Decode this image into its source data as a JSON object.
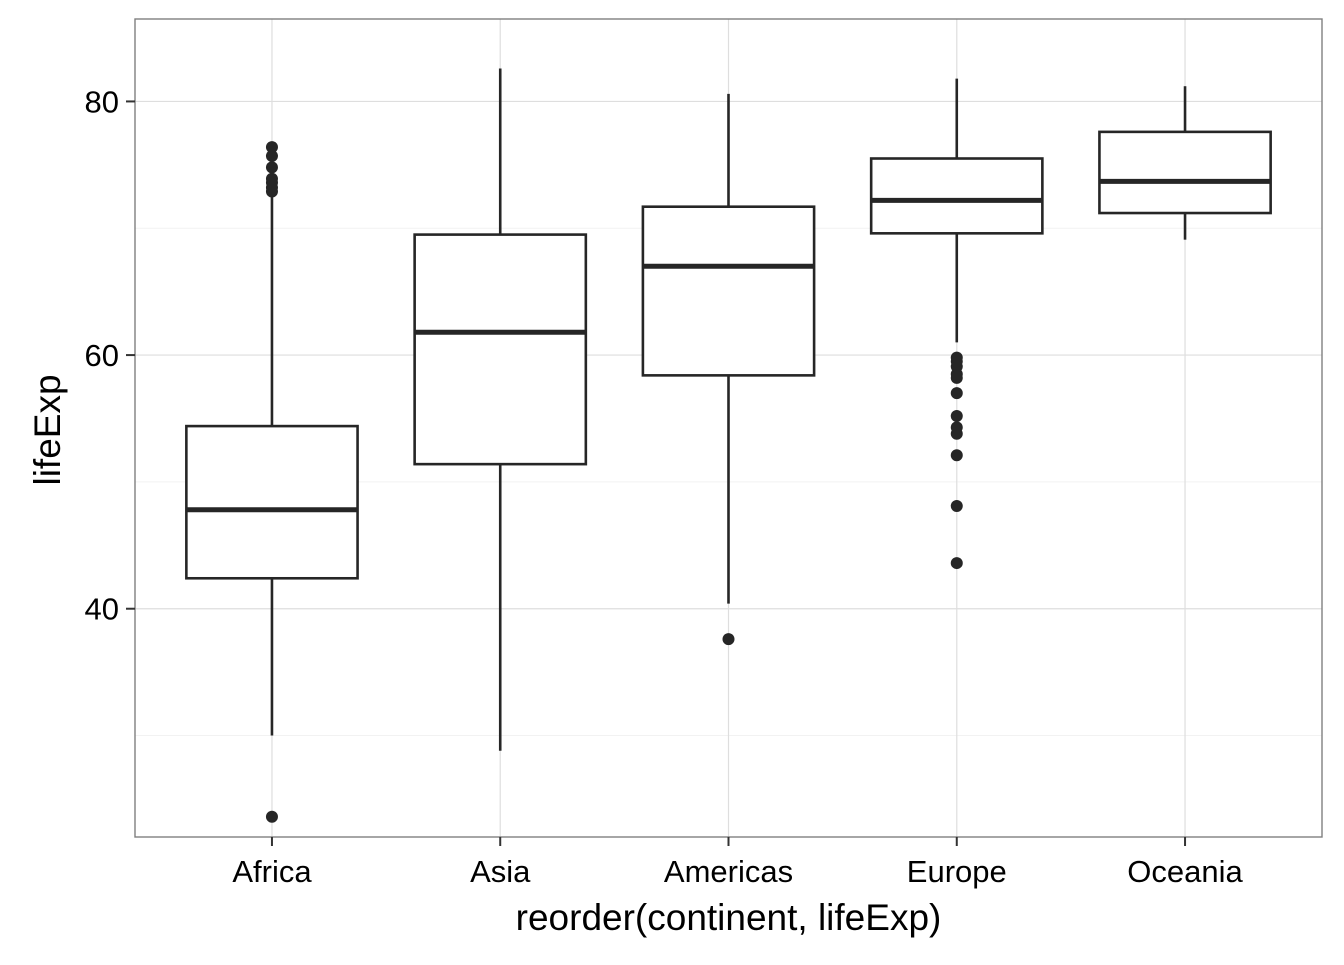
{
  "chart_data": {
    "type": "boxplot",
    "title": "",
    "xlabel": "reorder(continent, lifeExp)",
    "ylabel": "lifeExp",
    "ylim": [
      22.0,
      86.5
    ],
    "yticks": [
      40,
      60,
      80
    ],
    "grid": true,
    "categories": [
      "Africa",
      "Asia",
      "Americas",
      "Europe",
      "Oceania"
    ],
    "boxes": [
      {
        "category": "Africa",
        "whisker_low": 30.0,
        "q1": 42.4,
        "median": 47.8,
        "q3": 54.4,
        "whisker_high": 72.7,
        "outliers": [
          23.6,
          72.9,
          73.2,
          73.6,
          73.9,
          74.8,
          75.7,
          76.4
        ]
      },
      {
        "category": "Asia",
        "whisker_low": 28.8,
        "q1": 51.4,
        "median": 61.8,
        "q3": 69.5,
        "whisker_high": 82.6,
        "outliers": []
      },
      {
        "category": "Americas",
        "whisker_low": 40.4,
        "q1": 58.4,
        "median": 67.0,
        "q3": 71.7,
        "whisker_high": 80.6,
        "outliers": [
          37.6
        ]
      },
      {
        "category": "Europe",
        "whisker_low": 61.0,
        "q1": 69.6,
        "median": 72.2,
        "q3": 75.5,
        "whisker_high": 81.8,
        "outliers": [
          43.6,
          48.1,
          52.1,
          53.8,
          54.3,
          55.2,
          57.0,
          58.2,
          58.5,
          59.1,
          59.5,
          59.8
        ]
      },
      {
        "category": "Oceania",
        "whisker_low": 69.1,
        "q1": 71.2,
        "median": 73.7,
        "q3": 77.6,
        "whisker_high": 81.2,
        "outliers": []
      }
    ],
    "colors": {
      "panel_border": "#7f7f7f",
      "grid_major": "#dedede",
      "grid_minor": "#f2f2f2",
      "box_stroke": "#262626",
      "outlier_fill": "#262626",
      "tick_mark": "#333333"
    }
  }
}
